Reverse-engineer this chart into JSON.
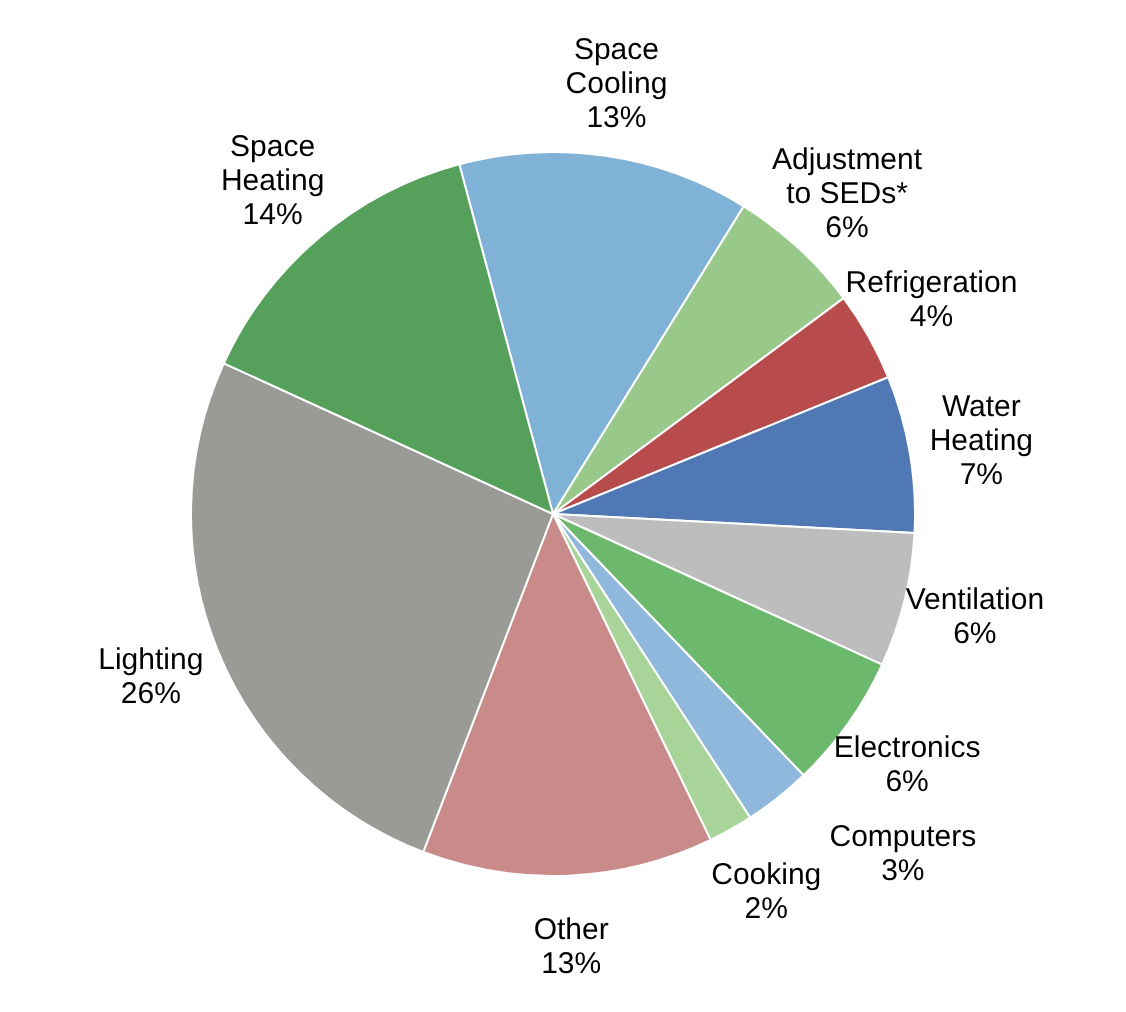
{
  "chart_data": {
    "type": "pie",
    "categories": [
      "Space Cooling",
      "Adjustment to SEDs*",
      "Refrigeration",
      "Water Heating",
      "Ventilation",
      "Electronics",
      "Computers",
      "Cooking",
      "Other",
      "Lighting",
      "Space Heating"
    ],
    "values": [
      13,
      6,
      4,
      7,
      6,
      6,
      3,
      2,
      13,
      26,
      14
    ],
    "colors": [
      "#7fb2d6",
      "#98c98a",
      "#b84c4c",
      "#5078b4",
      "#bdbdbd",
      "#6cb86c",
      "#8fb8dc",
      "#a8d49a",
      "#c98a8a",
      "#9a9a96",
      "#55a05a"
    ],
    "value_labels": [
      "13%",
      "6%",
      "4%",
      "7%",
      "6%",
      "6%",
      "3%",
      "2%",
      "13%",
      "26%",
      "14%"
    ],
    "legend": false
  }
}
